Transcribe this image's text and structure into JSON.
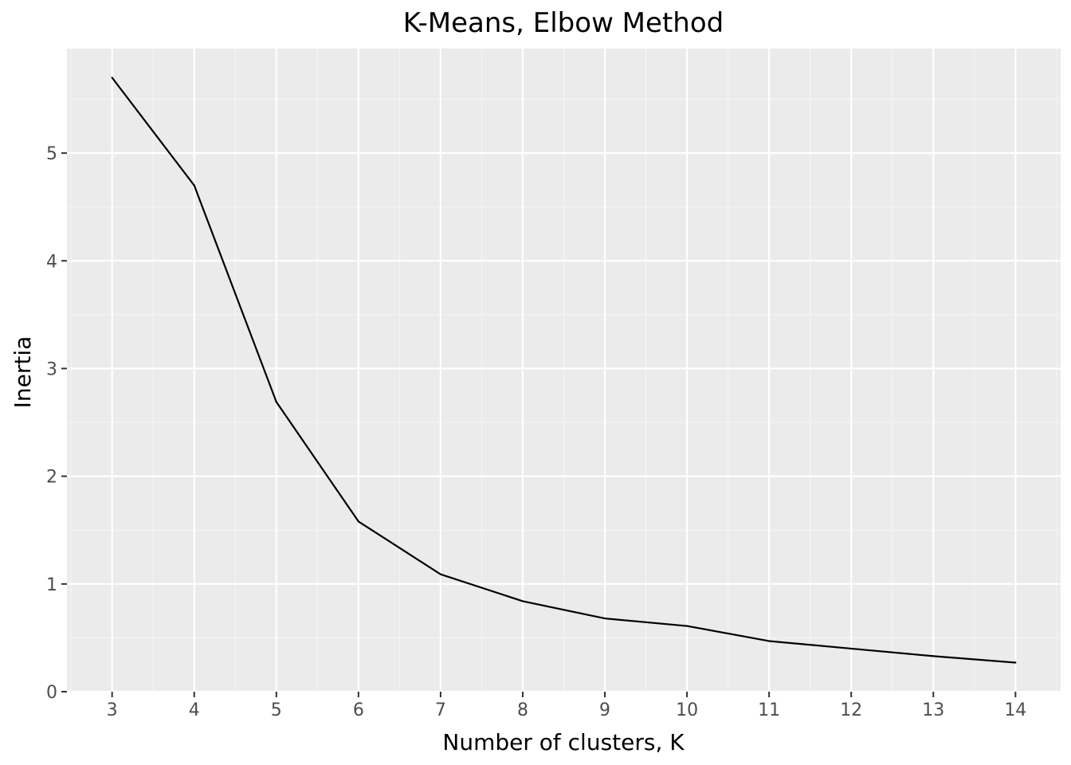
{
  "chart_data": {
    "type": "line",
    "title": "K-Means, Elbow Method",
    "xlabel": "Number of clusters, K",
    "ylabel": "Inertia",
    "x": [
      3,
      4,
      5,
      6,
      7,
      8,
      9,
      10,
      11,
      12,
      13,
      14
    ],
    "series": [
      {
        "values": [
          5.7,
          4.7,
          2.69,
          1.58,
          1.09,
          0.84,
          0.68,
          0.61,
          0.47,
          0.4,
          0.33,
          0.27
        ]
      }
    ],
    "xticks": [
      3,
      4,
      5,
      6,
      7,
      8,
      9,
      10,
      11,
      12,
      13,
      14
    ],
    "yticks": [
      0,
      1,
      2,
      3,
      4,
      5
    ],
    "xlim": [
      2.45,
      14.55
    ],
    "ylim": [
      0,
      5.97
    ],
    "grid": true,
    "colors": {
      "panel_background": "#ebebeb",
      "major_grid": "#ffffff",
      "minor_grid": "#f5f5f5",
      "line": "#000000",
      "tick_text": "#4d4d4d",
      "tick_mark": "#333333"
    }
  }
}
